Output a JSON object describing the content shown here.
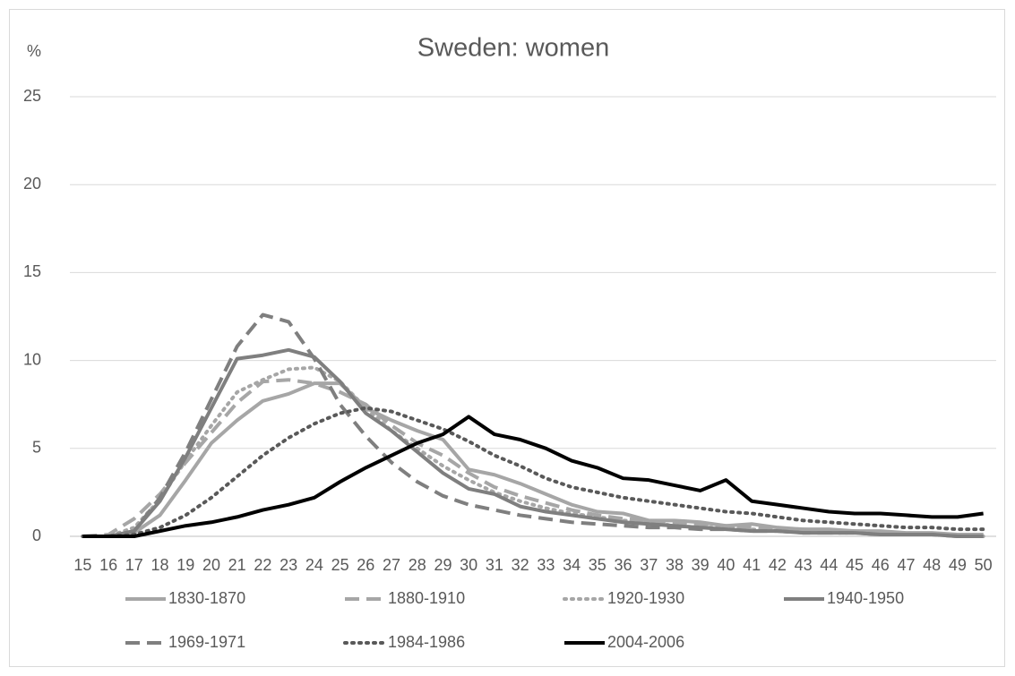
{
  "chart_data": {
    "type": "line",
    "title": "Sweden: women",
    "y_label": "%",
    "categories": [
      15,
      16,
      17,
      18,
      19,
      20,
      21,
      22,
      23,
      24,
      25,
      26,
      27,
      28,
      29,
      30,
      31,
      32,
      33,
      34,
      35,
      36,
      37,
      38,
      39,
      40,
      41,
      42,
      43,
      44,
      45,
      46,
      47,
      48,
      49,
      50
    ],
    "ylim": [
      0,
      25
    ],
    "yticks": [
      0,
      5,
      10,
      15,
      20,
      25
    ],
    "grid": true,
    "legend": "bottom",
    "series": [
      {
        "name": "1830-1870",
        "color": "#a6a6a6",
        "dash": "solid",
        "values": [
          0,
          0,
          0.2,
          1.2,
          3.2,
          5.3,
          6.6,
          7.7,
          8.1,
          8.7,
          8.7,
          7.3,
          6.6,
          6.0,
          5.5,
          3.8,
          3.5,
          3.0,
          2.4,
          1.8,
          1.4,
          1.3,
          0.9,
          0.9,
          0.8,
          0.6,
          0.7,
          0.5,
          0.4,
          0.4,
          0.3,
          0.3,
          0.2,
          0.2,
          0.1,
          0.1
        ]
      },
      {
        "name": "1880-1910",
        "color": "#a6a6a6",
        "dash": "dashed",
        "values": [
          0,
          0.1,
          1.0,
          2.4,
          4.2,
          5.9,
          7.6,
          8.8,
          8.9,
          8.7,
          8.2,
          7.5,
          6.3,
          5.3,
          4.6,
          3.6,
          2.8,
          2.3,
          1.9,
          1.5,
          1.2,
          1.0,
          0.9,
          0.8,
          0.7,
          0.6,
          0.5,
          0.4,
          0.4,
          0.3,
          0.3,
          0.2,
          0.2,
          0.1,
          0.1,
          0.1
        ]
      },
      {
        "name": "1920-1930",
        "color": "#a6a6a6",
        "dash": "dotted",
        "values": [
          0,
          0,
          0.5,
          2.1,
          4.3,
          6.3,
          8.2,
          8.9,
          9.5,
          9.6,
          8.8,
          7.3,
          6.0,
          5.0,
          4.0,
          3.2,
          2.5,
          2.0,
          1.6,
          1.3,
          1.1,
          0.9,
          0.8,
          0.6,
          0.5,
          0.5,
          0.4,
          0.3,
          0.3,
          0.2,
          0.2,
          0.2,
          0.1,
          0.1,
          0.1,
          0
        ]
      },
      {
        "name": "1940-1950",
        "color": "#7f7f7f",
        "dash": "solid",
        "values": [
          0,
          0,
          0.3,
          2.0,
          4.5,
          7.3,
          10.1,
          10.3,
          10.6,
          10.2,
          8.8,
          7.0,
          6.0,
          4.8,
          3.6,
          2.7,
          2.4,
          1.7,
          1.4,
          1.2,
          1.0,
          0.8,
          0.7,
          0.6,
          0.5,
          0.4,
          0.3,
          0.3,
          0.2,
          0.2,
          0.2,
          0.1,
          0.1,
          0.1,
          0,
          0
        ]
      },
      {
        "name": "1969-1971",
        "color": "#7f7f7f",
        "dash": "dashed",
        "values": [
          0,
          0,
          0.3,
          2.2,
          4.8,
          7.8,
          10.8,
          12.6,
          12.2,
          10.1,
          7.5,
          5.7,
          4.2,
          3.1,
          2.3,
          1.8,
          1.5,
          1.2,
          1.0,
          0.8,
          0.7,
          0.6,
          0.5,
          0.5,
          0.4,
          0.4,
          0.3,
          0.3,
          0.2,
          0.2,
          0.2,
          0.1,
          0.1,
          0.1,
          0,
          0
        ]
      },
      {
        "name": "1984-1986",
        "color": "#595959",
        "dash": "dotted",
        "values": [
          0,
          0,
          0.1,
          0.5,
          1.2,
          2.2,
          3.4,
          4.6,
          5.6,
          6.4,
          7.0,
          7.3,
          7.1,
          6.6,
          6.1,
          5.4,
          4.6,
          4.0,
          3.3,
          2.8,
          2.5,
          2.2,
          2.0,
          1.8,
          1.6,
          1.4,
          1.3,
          1.1,
          0.9,
          0.8,
          0.7,
          0.6,
          0.5,
          0.5,
          0.4,
          0.4
        ]
      },
      {
        "name": "2004-2006",
        "color": "#000000",
        "dash": "solid",
        "values": [
          0,
          0,
          0,
          0.3,
          0.6,
          0.8,
          1.1,
          1.5,
          1.8,
          2.2,
          3.1,
          3.9,
          4.6,
          5.3,
          5.8,
          6.8,
          5.8,
          5.5,
          5.0,
          4.3,
          3.9,
          3.3,
          3.2,
          2.9,
          2.6,
          3.2,
          2.0,
          1.8,
          1.6,
          1.4,
          1.3,
          1.3,
          1.2,
          1.1,
          1.1,
          1.3
        ]
      }
    ]
  }
}
